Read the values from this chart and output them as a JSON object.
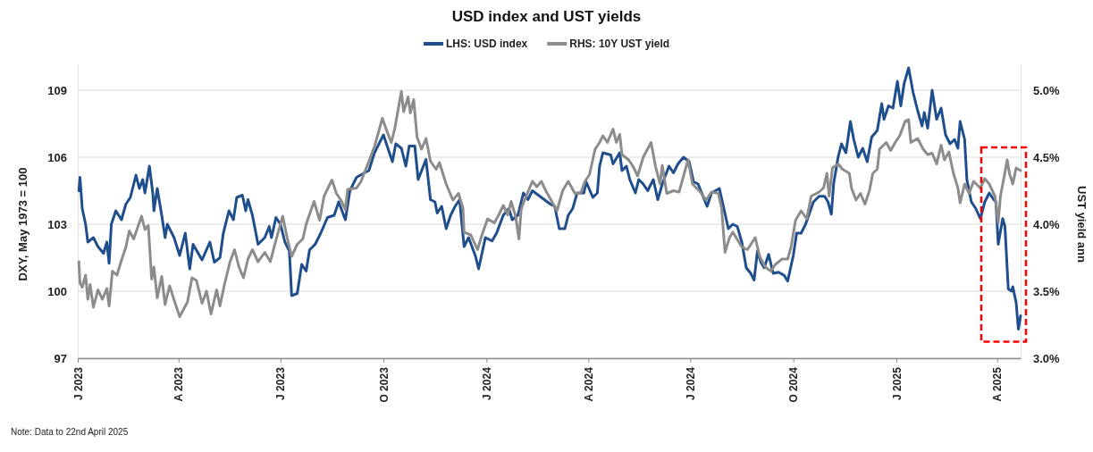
{
  "chart_data": {
    "type": "line",
    "title": "USD index and UST yields",
    "ylabel": "DXY, May 1973 = 100",
    "y2label": "UST yield ann",
    "legend": "top",
    "grid": "y",
    "line_style": "solid",
    "marker": "none",
    "xlim": [
      "2023-01-01",
      "2025-04-22"
    ],
    "xticks": [
      {
        "value": "2023-01-01",
        "label": "J 2023"
      },
      {
        "value": "2023-04-01",
        "label": "A 2023"
      },
      {
        "value": "2023-07-01",
        "label": "J 2023"
      },
      {
        "value": "2023-10-01",
        "label": "O 2023"
      },
      {
        "value": "2024-01-01",
        "label": "J 2024"
      },
      {
        "value": "2024-04-01",
        "label": "A 2024"
      },
      {
        "value": "2024-07-01",
        "label": "J 2024"
      },
      {
        "value": "2024-10-01",
        "label": "O 2024"
      },
      {
        "value": "2025-01-01",
        "label": "J 2025"
      },
      {
        "value": "2025-04-01",
        "label": "A 2025"
      }
    ],
    "ylim": [
      97,
      110.2
    ],
    "yticks": [
      97,
      100,
      103,
      106,
      109
    ],
    "y2lim": [
      3,
      5.2
    ],
    "y2ticks": [
      {
        "value": 3,
        "label": "3.0%"
      },
      {
        "value": 3.5,
        "label": "3.5%"
      },
      {
        "value": 4,
        "label": "4.0%"
      },
      {
        "value": 4.5,
        "label": "4.5%"
      },
      {
        "value": 5,
        "label": "5.0%"
      }
    ],
    "annotations": [
      "Note: Data to 22nd April 2025"
    ],
    "series": [
      {
        "name": "LHS: USD index",
        "color": "#1f4e8c",
        "axis": "y",
        "x": [
          "2023-01-02",
          "2023-01-03",
          "2023-01-05",
          "2023-01-08",
          "2023-01-10",
          "2023-01-15",
          "2023-01-19",
          "2023-01-24",
          "2023-01-27",
          "2023-01-29",
          "2023-01-31",
          "2023-02-04",
          "2023-02-09",
          "2023-02-13",
          "2023-02-17",
          "2023-02-22",
          "2023-02-25",
          "2023-02-28",
          "2023-03-02",
          "2023-03-06",
          "2023-03-09",
          "2023-03-10",
          "2023-03-13",
          "2023-03-17",
          "2023-03-20",
          "2023-03-22",
          "2023-03-28",
          "2023-04-02",
          "2023-04-07",
          "2023-04-11",
          "2023-04-14",
          "2023-04-22",
          "2023-04-29",
          "2023-05-03",
          "2023-05-08",
          "2023-05-11",
          "2023-05-16",
          "2023-05-20",
          "2023-05-23",
          "2023-05-28",
          "2023-05-31",
          "2023-06-02",
          "2023-06-06",
          "2023-06-11",
          "2023-06-17",
          "2023-06-21",
          "2023-06-23",
          "2023-06-27",
          "2023-07-01",
          "2023-07-05",
          "2023-07-09",
          "2023-07-11",
          "2023-07-16",
          "2023-07-20",
          "2023-07-24",
          "2023-07-27",
          "2023-08-01",
          "2023-08-06",
          "2023-08-12",
          "2023-08-18",
          "2023-08-22",
          "2023-08-28",
          "2023-09-01",
          "2023-09-07",
          "2023-09-14",
          "2023-09-18",
          "2023-09-23",
          "2023-10-01",
          "2023-10-05",
          "2023-10-09",
          "2023-10-12",
          "2023-10-17",
          "2023-10-21",
          "2023-10-24",
          "2023-10-29",
          "2023-11-01",
          "2023-11-08",
          "2023-11-12",
          "2023-11-16",
          "2023-11-18",
          "2023-11-22",
          "2023-11-26",
          "2023-11-30",
          "2023-12-04",
          "2023-12-08",
          "2023-12-12",
          "2023-12-16",
          "2023-12-22",
          "2023-12-25",
          "2023-12-31",
          "2024-01-06",
          "2024-01-10",
          "2024-01-16",
          "2024-01-21",
          "2024-01-24",
          "2024-01-29",
          "2024-02-03",
          "2024-02-07",
          "2024-02-11",
          "2024-02-19",
          "2024-02-27",
          "2024-03-02",
          "2024-03-06",
          "2024-03-11",
          "2024-03-14",
          "2024-03-18",
          "2024-03-22",
          "2024-03-28",
          "2024-03-30",
          "2024-04-05",
          "2024-04-09",
          "2024-04-11",
          "2024-04-14",
          "2024-04-21",
          "2024-04-23",
          "2024-04-29",
          "2024-05-01",
          "2024-05-05",
          "2024-05-08",
          "2024-05-13",
          "2024-05-16",
          "2024-05-20",
          "2024-05-24",
          "2024-05-29",
          "2024-06-02",
          "2024-06-06",
          "2024-06-12",
          "2024-06-16",
          "2024-06-20",
          "2024-06-25",
          "2024-06-30",
          "2024-07-04",
          "2024-07-08",
          "2024-07-16",
          "2024-07-20",
          "2024-07-27",
          "2024-07-31",
          "2024-08-04",
          "2024-08-08",
          "2024-08-12",
          "2024-08-16",
          "2024-08-20",
          "2024-08-24",
          "2024-08-27",
          "2024-08-30",
          "2024-09-02",
          "2024-09-05",
          "2024-09-09",
          "2024-09-13",
          "2024-09-18",
          "2024-09-23",
          "2024-09-26",
          "2024-10-01",
          "2024-10-04",
          "2024-10-08",
          "2024-10-12",
          "2024-10-19",
          "2024-10-24",
          "2024-10-29",
          "2024-11-01",
          "2024-11-04",
          "2024-11-06",
          "2024-11-10",
          "2024-11-13",
          "2024-11-17",
          "2024-11-21",
          "2024-11-24",
          "2024-11-28",
          "2024-12-02",
          "2024-12-06",
          "2024-12-10",
          "2024-12-15",
          "2024-12-19",
          "2024-12-21",
          "2024-12-25",
          "2024-12-29",
          "2025-01-02",
          "2025-01-05",
          "2025-01-08",
          "2025-01-12",
          "2025-01-16",
          "2025-01-20",
          "2025-01-24",
          "2025-01-26",
          "2025-01-29",
          "2025-02-02",
          "2025-02-06",
          "2025-02-10",
          "2025-02-14",
          "2025-02-18",
          "2025-02-22",
          "2025-02-25",
          "2025-02-27",
          "2025-03-03",
          "2025-03-05",
          "2025-03-09",
          "2025-03-13",
          "2025-03-17",
          "2025-03-21",
          "2025-03-25",
          "2025-03-29",
          "2025-03-31",
          "2025-04-02",
          "2025-04-06",
          "2025-04-08",
          "2025-04-11",
          "2025-04-14",
          "2025-04-15",
          "2025-04-18",
          "2025-04-20",
          "2025-04-22"
        ],
        "values": [
          104.5,
          105.1,
          103.7,
          103.0,
          102.2,
          102.4,
          102.0,
          101.7,
          102.2,
          101.25,
          103.0,
          103.6,
          103.2,
          103.9,
          104.2,
          105.2,
          104.6,
          105.0,
          104.4,
          105.6,
          104.4,
          103.6,
          104.6,
          103.4,
          102.4,
          103.0,
          102.4,
          101.6,
          102.6,
          101.0,
          102.1,
          101.4,
          102.2,
          101.3,
          101.5,
          102.6,
          103.6,
          103.2,
          104.2,
          104.3,
          103.6,
          104.1,
          103.4,
          102.1,
          102.4,
          102.9,
          102.4,
          103.3,
          103.0,
          102.2,
          101.8,
          99.8,
          99.9,
          101.2,
          100.9,
          101.85,
          102.1,
          102.6,
          103.3,
          103.4,
          104.0,
          103.2,
          104.5,
          105.1,
          105.3,
          105.4,
          106.2,
          107.0,
          106.4,
          105.8,
          106.6,
          106.4,
          105.6,
          106.5,
          106.5,
          105.0,
          105.9,
          104.1,
          104.0,
          103.5,
          103.8,
          102.8,
          103.4,
          103.8,
          104.1,
          102.0,
          102.4,
          101.6,
          101.0,
          102.4,
          102.25,
          102.6,
          103.4,
          103.7,
          103.2,
          103.4,
          104.4,
          104.1,
          104.5,
          104.2,
          103.9,
          103.8,
          102.8,
          102.8,
          103.4,
          103.7,
          104.4,
          104.4,
          104.9,
          104.2,
          104.4,
          105.6,
          106.2,
          106.1,
          105.7,
          106.2,
          105.4,
          105.6,
          105.0,
          104.4,
          105.0,
          104.8,
          104.5,
          105.0,
          104.1,
          104.8,
          105.6,
          105.3,
          105.7,
          106.0,
          105.8,
          104.9,
          104.8,
          103.8,
          104.4,
          104.6,
          103.7,
          102.8,
          103.0,
          102.9,
          102.2,
          101.05,
          100.8,
          100.5,
          101.8,
          101.3,
          101.05,
          101.65,
          100.8,
          100.85,
          100.7,
          100.45,
          101.6,
          102.6,
          102.6,
          103.0,
          104.0,
          104.25,
          104.25,
          104.0,
          103.45,
          104.8,
          106.0,
          106.6,
          106.2,
          107.6,
          106.8,
          106.0,
          106.4,
          105.8,
          106.9,
          107.2,
          108.4,
          107.7,
          108.3,
          108.2,
          109.4,
          108.3,
          109.3,
          110.0,
          108.9,
          108.1,
          107.4,
          108.0,
          107.3,
          109.0,
          107.7,
          108.2,
          107.0,
          106.6,
          106.8,
          106.4,
          107.6,
          106.8,
          105.0,
          104.0,
          103.7,
          103.25,
          104.0,
          104.4,
          104.1,
          104.0,
          102.1,
          103.25,
          102.9,
          100.1,
          100.0,
          100.2,
          99.5,
          98.3,
          98.9
        ]
      },
      {
        "name": "RHS: 10Y UST yield",
        "color": "#8c8c8c",
        "axis": "y2",
        "x": [
          "2023-01-02",
          "2023-01-03",
          "2023-01-05",
          "2023-01-08",
          "2023-01-10",
          "2023-01-12",
          "2023-01-15",
          "2023-01-19",
          "2023-01-23",
          "2023-01-27",
          "2023-01-29",
          "2023-02-01",
          "2023-02-05",
          "2023-02-09",
          "2023-02-13",
          "2023-02-16",
          "2023-02-20",
          "2023-02-22",
          "2023-02-27",
          "2023-03-02",
          "2023-03-05",
          "2023-03-08",
          "2023-03-10",
          "2023-03-13",
          "2023-03-17",
          "2023-03-20",
          "2023-03-24",
          "2023-03-29",
          "2023-04-02",
          "2023-04-09",
          "2023-04-13",
          "2023-04-17",
          "2023-04-22",
          "2023-04-26",
          "2023-04-30",
          "2023-05-05",
          "2023-05-08",
          "2023-05-12",
          "2023-05-17",
          "2023-05-21",
          "2023-05-25",
          "2023-05-29",
          "2023-06-02",
          "2023-06-06",
          "2023-06-11",
          "2023-06-17",
          "2023-06-22",
          "2023-06-26",
          "2023-07-03",
          "2023-07-07",
          "2023-07-11",
          "2023-07-16",
          "2023-07-21",
          "2023-07-24",
          "2023-07-31",
          "2023-08-05",
          "2023-08-09",
          "2023-08-16",
          "2023-08-20",
          "2023-08-24",
          "2023-08-28",
          "2023-08-30",
          "2023-09-07",
          "2023-09-11",
          "2023-09-18",
          "2023-09-23",
          "2023-09-30",
          "2023-10-03",
          "2023-10-08",
          "2023-10-11",
          "2023-10-17",
          "2023-10-19",
          "2023-10-23",
          "2023-10-25",
          "2023-10-28",
          "2023-10-31",
          "2023-11-04",
          "2023-11-08",
          "2023-11-12",
          "2023-11-17",
          "2023-11-20",
          "2023-11-26",
          "2023-12-02",
          "2023-12-07",
          "2023-12-11",
          "2023-12-12",
          "2023-12-18",
          "2023-12-24",
          "2023-12-28",
          "2024-01-02",
          "2024-01-08",
          "2024-01-12",
          "2024-01-16",
          "2024-01-20",
          "2024-01-23",
          "2024-01-27",
          "2024-01-30",
          "2024-02-01",
          "2024-02-03",
          "2024-02-07",
          "2024-02-11",
          "2024-02-15",
          "2024-02-19",
          "2024-02-23",
          "2024-02-29",
          "2024-03-04",
          "2024-03-09",
          "2024-03-14",
          "2024-03-20",
          "2024-03-25",
          "2024-03-29",
          "2024-04-02",
          "2024-04-07",
          "2024-04-11",
          "2024-04-14",
          "2024-04-18",
          "2024-04-23",
          "2024-04-26",
          "2024-04-29",
          "2024-05-01",
          "2024-05-07",
          "2024-05-11",
          "2024-05-15",
          "2024-05-20",
          "2024-05-27",
          "2024-05-31",
          "2024-06-04",
          "2024-06-06",
          "2024-06-10",
          "2024-06-16",
          "2024-06-21",
          "2024-06-25",
          "2024-06-29",
          "2024-07-03",
          "2024-07-10",
          "2024-07-15",
          "2024-07-20",
          "2024-07-26",
          "2024-07-29",
          "2024-08-01",
          "2024-08-05",
          "2024-08-08",
          "2024-08-11",
          "2024-08-16",
          "2024-08-21",
          "2024-08-28",
          "2024-09-01",
          "2024-09-06",
          "2024-09-11",
          "2024-09-15",
          "2024-09-21",
          "2024-09-26",
          "2024-09-29",
          "2024-10-03",
          "2024-10-08",
          "2024-10-13",
          "2024-10-17",
          "2024-10-24",
          "2024-10-28",
          "2024-10-31",
          "2024-11-02",
          "2024-11-05",
          "2024-11-10",
          "2024-11-14",
          "2024-11-20",
          "2024-11-22",
          "2024-11-26",
          "2024-11-30",
          "2024-12-04",
          "2024-12-08",
          "2024-12-11",
          "2024-12-15",
          "2024-12-17",
          "2024-12-23",
          "2024-12-27",
          "2024-12-31",
          "2025-01-04",
          "2025-01-09",
          "2025-01-12",
          "2025-01-14",
          "2025-01-20",
          "2025-01-25",
          "2025-01-29",
          "2025-02-02",
          "2025-02-06",
          "2025-02-10",
          "2025-02-13",
          "2025-02-17",
          "2025-02-21",
          "2025-02-25",
          "2025-02-27",
          "2025-03-03",
          "2025-03-07",
          "2025-03-11",
          "2025-03-17",
          "2025-03-21",
          "2025-03-25",
          "2025-03-30",
          "2025-04-02",
          "2025-04-04",
          "2025-04-07",
          "2025-04-10",
          "2025-04-12",
          "2025-04-15",
          "2025-04-18",
          "2025-04-22"
        ],
        "values": [
          3.72,
          3.56,
          3.53,
          3.62,
          3.44,
          3.55,
          3.38,
          3.51,
          3.44,
          3.52,
          3.39,
          3.65,
          3.62,
          3.73,
          3.83,
          3.95,
          3.89,
          3.94,
          4.06,
          3.96,
          3.99,
          3.59,
          3.68,
          3.45,
          3.61,
          3.4,
          3.54,
          3.41,
          3.31,
          3.42,
          3.6,
          3.58,
          3.41,
          3.5,
          3.33,
          3.51,
          3.39,
          3.55,
          3.72,
          3.81,
          3.68,
          3.6,
          3.74,
          3.81,
          3.72,
          3.79,
          3.72,
          3.85,
          4.06,
          3.9,
          3.76,
          3.85,
          3.89,
          4.0,
          4.17,
          4.03,
          4.21,
          4.33,
          4.23,
          4.18,
          4.11,
          4.26,
          4.27,
          4.32,
          4.47,
          4.58,
          4.79,
          4.72,
          4.61,
          4.71,
          4.99,
          4.84,
          4.95,
          4.83,
          4.93,
          4.65,
          4.56,
          4.64,
          4.47,
          4.41,
          4.46,
          4.3,
          4.18,
          4.23,
          4.12,
          3.94,
          3.92,
          3.81,
          3.92,
          4.04,
          4.01,
          4.07,
          4.14,
          4.07,
          4.17,
          4.06,
          3.89,
          4.11,
          4.16,
          4.24,
          4.32,
          4.28,
          4.32,
          4.25,
          4.16,
          4.1,
          4.25,
          4.32,
          4.23,
          4.23,
          4.32,
          4.37,
          4.56,
          4.61,
          4.66,
          4.61,
          4.71,
          4.61,
          4.67,
          4.52,
          4.48,
          4.43,
          4.36,
          4.5,
          4.61,
          4.43,
          4.3,
          4.44,
          4.23,
          4.25,
          4.24,
          4.36,
          4.48,
          4.3,
          4.24,
          4.18,
          4.24,
          4.23,
          4.12,
          3.79,
          3.9,
          3.94,
          3.9,
          3.83,
          3.81,
          3.9,
          3.76,
          3.68,
          3.65,
          3.7,
          3.74,
          3.74,
          3.83,
          4.03,
          4.1,
          4.04,
          4.21,
          4.24,
          4.27,
          4.38,
          4.21,
          4.42,
          4.45,
          4.41,
          4.38,
          4.27,
          4.18,
          4.23,
          4.15,
          4.25,
          4.38,
          4.41,
          4.56,
          4.61,
          4.55,
          4.61,
          4.66,
          4.77,
          4.78,
          4.61,
          4.64,
          4.56,
          4.52,
          4.53,
          4.45,
          4.59,
          4.48,
          4.54,
          4.38,
          4.27,
          4.16,
          4.3,
          4.23,
          4.32,
          4.27,
          4.34,
          4.3,
          4.21,
          4.01,
          4.21,
          4.34,
          4.48,
          4.38,
          4.3,
          4.42,
          4.4
        ]
      }
    ]
  }
}
